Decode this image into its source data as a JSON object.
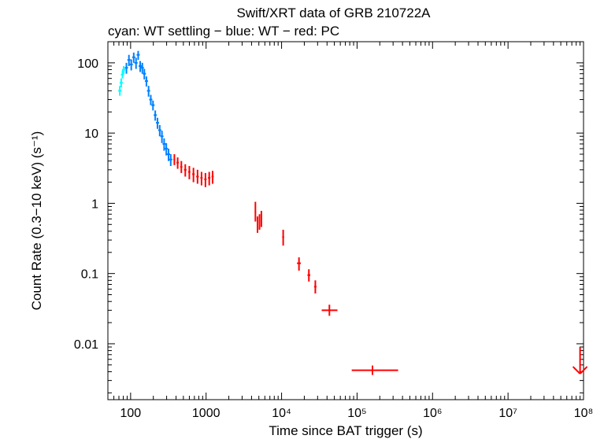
{
  "chart_data": {
    "type": "scatter",
    "title": "Swift/XRT data of GRB 210722A",
    "subtitle": "cyan: WT settling − blue: WT − red: PC",
    "xlabel": "Time since BAT trigger (s)",
    "ylabel": "Count Rate (0.3−10 keV) (s⁻¹)",
    "xscale": "log",
    "yscale": "log",
    "xlim": [
      50,
      100000000
    ],
    "ylim": [
      0.0016,
      200
    ],
    "grid": false,
    "x_tick_labels": [
      "100",
      "1000",
      "10⁴",
      "10⁵",
      "10⁶",
      "10⁷",
      "10⁸"
    ],
    "y_tick_labels": [
      "100",
      "10",
      "1",
      "0.1",
      "0.01"
    ],
    "x_tick_values": [
      100,
      1000,
      10000,
      100000,
      1000000,
      10000000,
      100000000
    ],
    "y_tick_values": [
      100,
      10,
      1,
      0.1,
      0.01
    ],
    "series": [
      {
        "name": "WT settling",
        "color": "#00ffff",
        "points": [
          {
            "x": 72,
            "y": 40,
            "ylo": 34,
            "yhi": 47
          },
          {
            "x": 75,
            "y": 52,
            "ylo": 45,
            "yhi": 60
          },
          {
            "x": 78,
            "y": 68,
            "ylo": 60,
            "yhi": 78
          },
          {
            "x": 81,
            "y": 80,
            "ylo": 70,
            "yhi": 90
          }
        ]
      },
      {
        "name": "WT",
        "color": "#0080ff",
        "points": [
          {
            "x": 88,
            "y": 85,
            "ylo": 70,
            "yhi": 100
          },
          {
            "x": 95,
            "y": 110,
            "ylo": 90,
            "yhi": 130
          },
          {
            "x": 102,
            "y": 95,
            "ylo": 78,
            "yhi": 112
          },
          {
            "x": 110,
            "y": 120,
            "ylo": 100,
            "yhi": 140
          },
          {
            "x": 118,
            "y": 100,
            "ylo": 82,
            "yhi": 118
          },
          {
            "x": 126,
            "y": 130,
            "ylo": 110,
            "yhi": 148
          },
          {
            "x": 134,
            "y": 90,
            "ylo": 74,
            "yhi": 106
          },
          {
            "x": 143,
            "y": 85,
            "ylo": 70,
            "yhi": 100
          },
          {
            "x": 152,
            "y": 70,
            "ylo": 58,
            "yhi": 82
          },
          {
            "x": 162,
            "y": 55,
            "ylo": 46,
            "yhi": 64
          },
          {
            "x": 173,
            "y": 40,
            "ylo": 33,
            "yhi": 47
          },
          {
            "x": 185,
            "y": 30,
            "ylo": 25,
            "yhi": 35
          },
          {
            "x": 198,
            "y": 25,
            "ylo": 21,
            "yhi": 29
          },
          {
            "x": 212,
            "y": 18,
            "ylo": 15,
            "yhi": 21
          },
          {
            "x": 227,
            "y": 14,
            "ylo": 11.5,
            "yhi": 16.5
          },
          {
            "x": 243,
            "y": 11,
            "ylo": 9,
            "yhi": 13
          },
          {
            "x": 260,
            "y": 9,
            "ylo": 7.2,
            "yhi": 10.8
          },
          {
            "x": 278,
            "y": 7,
            "ylo": 5.6,
            "yhi": 8.4
          },
          {
            "x": 297,
            "y": 6,
            "ylo": 4.8,
            "yhi": 7.2
          },
          {
            "x": 318,
            "y": 5,
            "ylo": 4,
            "yhi": 6
          },
          {
            "x": 340,
            "y": 4.2,
            "ylo": 3.4,
            "yhi": 5
          }
        ]
      },
      {
        "name": "PC",
        "color": "#ff0000",
        "points": [
          {
            "x": 380,
            "y": 4.2,
            "ylo": 3.5,
            "yhi": 5,
            "xlo": 370,
            "xhi": 390
          },
          {
            "x": 420,
            "y": 3.8,
            "ylo": 3.1,
            "yhi": 4.5,
            "xlo": 405,
            "xhi": 435
          },
          {
            "x": 470,
            "y": 3.3,
            "ylo": 2.7,
            "yhi": 4,
            "xlo": 455,
            "xhi": 485
          },
          {
            "x": 530,
            "y": 3.0,
            "ylo": 2.4,
            "yhi": 3.6,
            "xlo": 510,
            "xhi": 550
          },
          {
            "x": 600,
            "y": 2.8,
            "ylo": 2.2,
            "yhi": 3.4,
            "xlo": 580,
            "xhi": 620
          },
          {
            "x": 680,
            "y": 2.6,
            "ylo": 2.0,
            "yhi": 3.2,
            "xlo": 655,
            "xhi": 705
          },
          {
            "x": 770,
            "y": 2.4,
            "ylo": 1.9,
            "yhi": 3.0,
            "xlo": 740,
            "xhi": 800
          },
          {
            "x": 870,
            "y": 2.3,
            "ylo": 1.8,
            "yhi": 2.8,
            "xlo": 840,
            "xhi": 900
          },
          {
            "x": 980,
            "y": 2.2,
            "ylo": 1.7,
            "yhi": 2.7,
            "xlo": 945,
            "xhi": 1015
          },
          {
            "x": 1100,
            "y": 2.3,
            "ylo": 1.8,
            "yhi": 2.8,
            "xlo": 1060,
            "xhi": 1140
          },
          {
            "x": 1220,
            "y": 2.4,
            "ylo": 1.9,
            "yhi": 2.9,
            "xlo": 1180,
            "xhi": 1260
          },
          {
            "x": 4500,
            "y": 0.75,
            "ylo": 0.55,
            "yhi": 1.05,
            "xlo": 4400,
            "xhi": 4600
          },
          {
            "x": 4800,
            "y": 0.5,
            "ylo": 0.38,
            "yhi": 0.65,
            "xlo": 4700,
            "xhi": 4900
          },
          {
            "x": 5100,
            "y": 0.55,
            "ylo": 0.42,
            "yhi": 0.7,
            "xlo": 5000,
            "xhi": 5200
          },
          {
            "x": 5400,
            "y": 0.6,
            "ylo": 0.46,
            "yhi": 0.78,
            "xlo": 5300,
            "xhi": 5500
          },
          {
            "x": 10500,
            "y": 0.33,
            "ylo": 0.25,
            "yhi": 0.42,
            "xlo": 10200,
            "xhi": 10800
          },
          {
            "x": 17000,
            "y": 0.14,
            "ylo": 0.11,
            "yhi": 0.17,
            "xlo": 16000,
            "xhi": 18000
          },
          {
            "x": 23000,
            "y": 0.095,
            "ylo": 0.077,
            "yhi": 0.115,
            "xlo": 22000,
            "xhi": 24000
          },
          {
            "x": 28000,
            "y": 0.065,
            "ylo": 0.052,
            "yhi": 0.08,
            "xlo": 27000,
            "xhi": 29000
          },
          {
            "x": 43000,
            "y": 0.03,
            "ylo": 0.025,
            "yhi": 0.036,
            "xlo": 34000,
            "xhi": 55000
          },
          {
            "x": 160000,
            "y": 0.0042,
            "ylo": 0.0036,
            "yhi": 0.0049,
            "xlo": 85000,
            "xhi": 350000
          }
        ],
        "upper_limits": [
          {
            "x": 90000000,
            "y": 0.009
          }
        ]
      }
    ]
  }
}
